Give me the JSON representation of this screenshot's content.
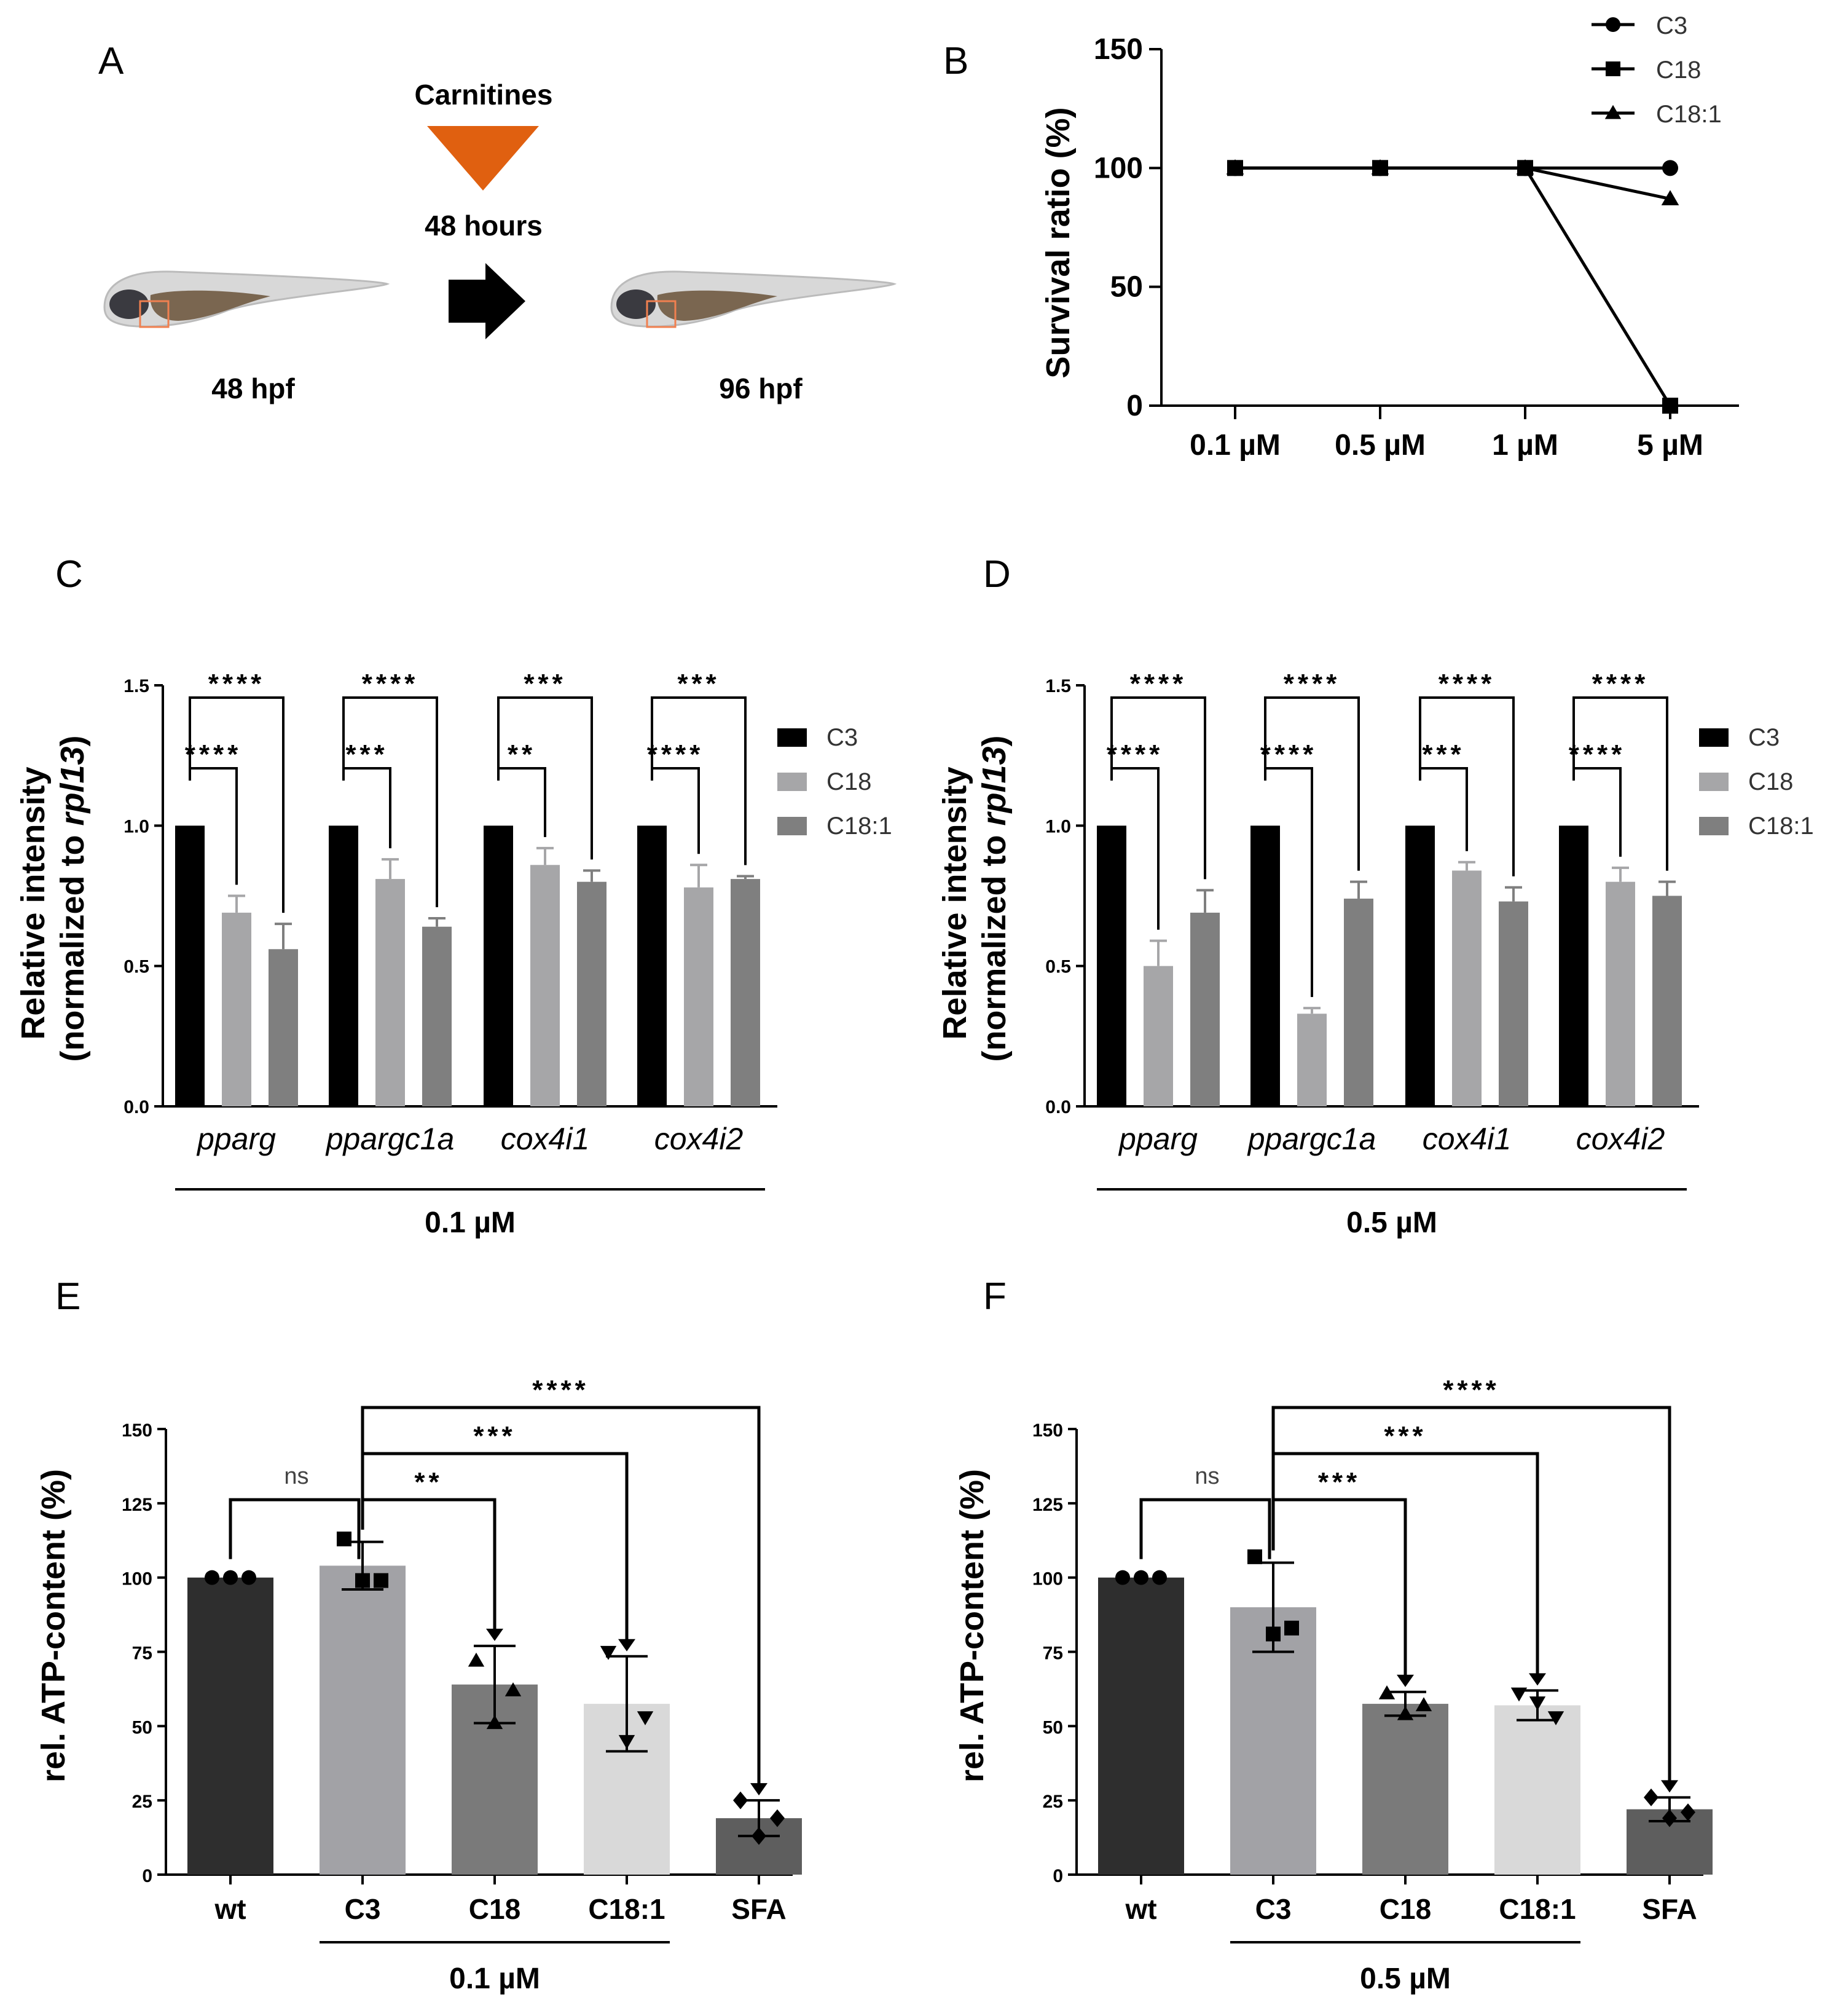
{
  "panel_labels": [
    "A",
    "B",
    "C",
    "D",
    "E",
    "F"
  ],
  "panelA": {
    "treatment": "Carnitines",
    "duration": "48 hours",
    "start_label": "48 hpf",
    "end_label": "96 hpf",
    "colors": {
      "triangle": "#e06010"
    }
  },
  "chart_data": [
    {
      "panel": "B",
      "type": "line",
      "categories": [
        "0.1 µM",
        "0.5 µM",
        "1 µM",
        "5 µM"
      ],
      "ylabel": "Survival ratio (%)",
      "ylim": [
        0,
        150
      ],
      "yticks": [
        0,
        50,
        100,
        150
      ],
      "legend_position": "top-right",
      "series": [
        {
          "name": "C3",
          "marker": "circle",
          "values": [
            100,
            100,
            100,
            100
          ]
        },
        {
          "name": "C18",
          "marker": "square",
          "values": [
            100,
            100,
            100,
            0
          ]
        },
        {
          "name": "C18:1",
          "marker": "triangle",
          "values": [
            100,
            100,
            100,
            87
          ]
        }
      ]
    },
    {
      "panel": "C",
      "type": "bar",
      "categories": [
        "pparg",
        "ppargc1a",
        "cox4i1",
        "cox4i2"
      ],
      "group_label": "0.1 µM",
      "ylabel_line1": "Relative intensity",
      "ylabel_line2_prefix": "(normalized to ",
      "ylabel_line2_italic": "rpl13",
      "ylabel_line2_suffix": ")",
      "ylim": [
        0,
        1.5
      ],
      "yticks": [
        "0.0",
        "0.5",
        "1.0",
        "1.5"
      ],
      "legend_position": "right",
      "series": [
        {
          "name": "C3",
          "color": "#000000",
          "values": [
            1.0,
            1.0,
            1.0,
            1.0
          ],
          "errors": [
            0,
            0,
            0,
            0
          ]
        },
        {
          "name": "C18",
          "color": "#a6a6a8",
          "values": [
            0.69,
            0.81,
            0.86,
            0.78
          ],
          "errors": [
            0.06,
            0.07,
            0.06,
            0.08
          ]
        },
        {
          "name": "C18:1",
          "color": "#7f7f7f",
          "values": [
            0.56,
            0.64,
            0.8,
            0.81
          ],
          "errors": [
            0.09,
            0.03,
            0.04,
            0.01
          ]
        }
      ],
      "significance": [
        {
          "stars_c18": "****",
          "stars_c181": "****"
        },
        {
          "stars_c18": "***",
          "stars_c181": "****"
        },
        {
          "stars_c18": "**",
          "stars_c181": "***"
        },
        {
          "stars_c18": "****",
          "stars_c181": "***"
        }
      ]
    },
    {
      "panel": "D",
      "type": "bar",
      "categories": [
        "pparg",
        "ppargc1a",
        "cox4i1",
        "cox4i2"
      ],
      "group_label": "0.5 µM",
      "ylabel_line1": "Relative intensity",
      "ylabel_line2_prefix": "(normalized to ",
      "ylabel_line2_italic": "rpl13",
      "ylabel_line2_suffix": ")",
      "ylim": [
        0,
        1.5
      ],
      "yticks": [
        "0.0",
        "0.5",
        "1.0",
        "1.5"
      ],
      "legend_position": "right",
      "series": [
        {
          "name": "C3",
          "color": "#000000",
          "values": [
            1.0,
            1.0,
            1.0,
            1.0
          ],
          "errors": [
            0,
            0,
            0,
            0
          ]
        },
        {
          "name": "C18",
          "color": "#a6a6a8",
          "values": [
            0.5,
            0.33,
            0.84,
            0.8
          ],
          "errors": [
            0.09,
            0.02,
            0.03,
            0.05
          ]
        },
        {
          "name": "C18:1",
          "color": "#7f7f7f",
          "values": [
            0.69,
            0.74,
            0.73,
            0.75
          ],
          "errors": [
            0.08,
            0.06,
            0.05,
            0.05
          ]
        }
      ],
      "significance": [
        {
          "stars_c18": "****",
          "stars_c181": "****"
        },
        {
          "stars_c18": "****",
          "stars_c181": "****"
        },
        {
          "stars_c18": "***",
          "stars_c181": "****"
        },
        {
          "stars_c18": "****",
          "stars_c181": "****"
        }
      ]
    },
    {
      "panel": "E",
      "type": "bar",
      "categories": [
        "wt",
        "C3",
        "C18",
        "C18:1",
        "SFA"
      ],
      "group_label": "0.1 µM",
      "ylabel": "rel. ATP-content (%)",
      "ylim": [
        0,
        150
      ],
      "yticks": [
        0,
        25,
        50,
        75,
        100,
        125,
        150
      ],
      "values": [
        100,
        104,
        64,
        57.5,
        19
      ],
      "errors": [
        0,
        8,
        13,
        16,
        6
      ],
      "colors": [
        "#2e2e2e",
        "#a2a2a6",
        "#7a7a7a",
        "#d9d9d9",
        "#5e5e5e"
      ],
      "markers": [
        "circle",
        "square",
        "triangle",
        "triangle-down",
        "diamond"
      ],
      "points": [
        [
          100,
          100,
          100
        ],
        [
          113,
          99,
          99
        ],
        [
          72,
          51,
          62
        ],
        [
          75,
          45,
          53
        ],
        [
          25,
          13,
          19
        ]
      ],
      "comparisons": [
        {
          "vs": "wt",
          "label": "ns"
        },
        {
          "vs": "C18",
          "label": "**"
        },
        {
          "vs": "C18:1",
          "label": "***"
        },
        {
          "vs": "SFA",
          "label": "****"
        }
      ]
    },
    {
      "panel": "F",
      "type": "bar",
      "categories": [
        "wt",
        "C3",
        "C18",
        "C18:1",
        "SFA"
      ],
      "group_label": "0.5 µM",
      "ylabel": "rel. ATP-content (%)",
      "ylim": [
        0,
        150
      ],
      "yticks": [
        0,
        25,
        50,
        75,
        100,
        125,
        150
      ],
      "values": [
        100,
        90,
        57.5,
        57,
        22
      ],
      "errors": [
        0,
        15,
        4,
        5,
        4
      ],
      "colors": [
        "#2e2e2e",
        "#a2a2a6",
        "#7a7a7a",
        "#d9d9d9",
        "#5e5e5e"
      ],
      "markers": [
        "circle",
        "square",
        "triangle",
        "triangle-down",
        "diamond"
      ],
      "points": [
        [
          100,
          100,
          100
        ],
        [
          107,
          81,
          83
        ],
        [
          61,
          54,
          57
        ],
        [
          61,
          58,
          53
        ],
        [
          26,
          19,
          21
        ]
      ],
      "comparisons": [
        {
          "vs": "wt",
          "label": "ns"
        },
        {
          "vs": "C18",
          "label": "***"
        },
        {
          "vs": "C18:1",
          "label": "***"
        },
        {
          "vs": "SFA",
          "label": "****"
        }
      ]
    }
  ]
}
